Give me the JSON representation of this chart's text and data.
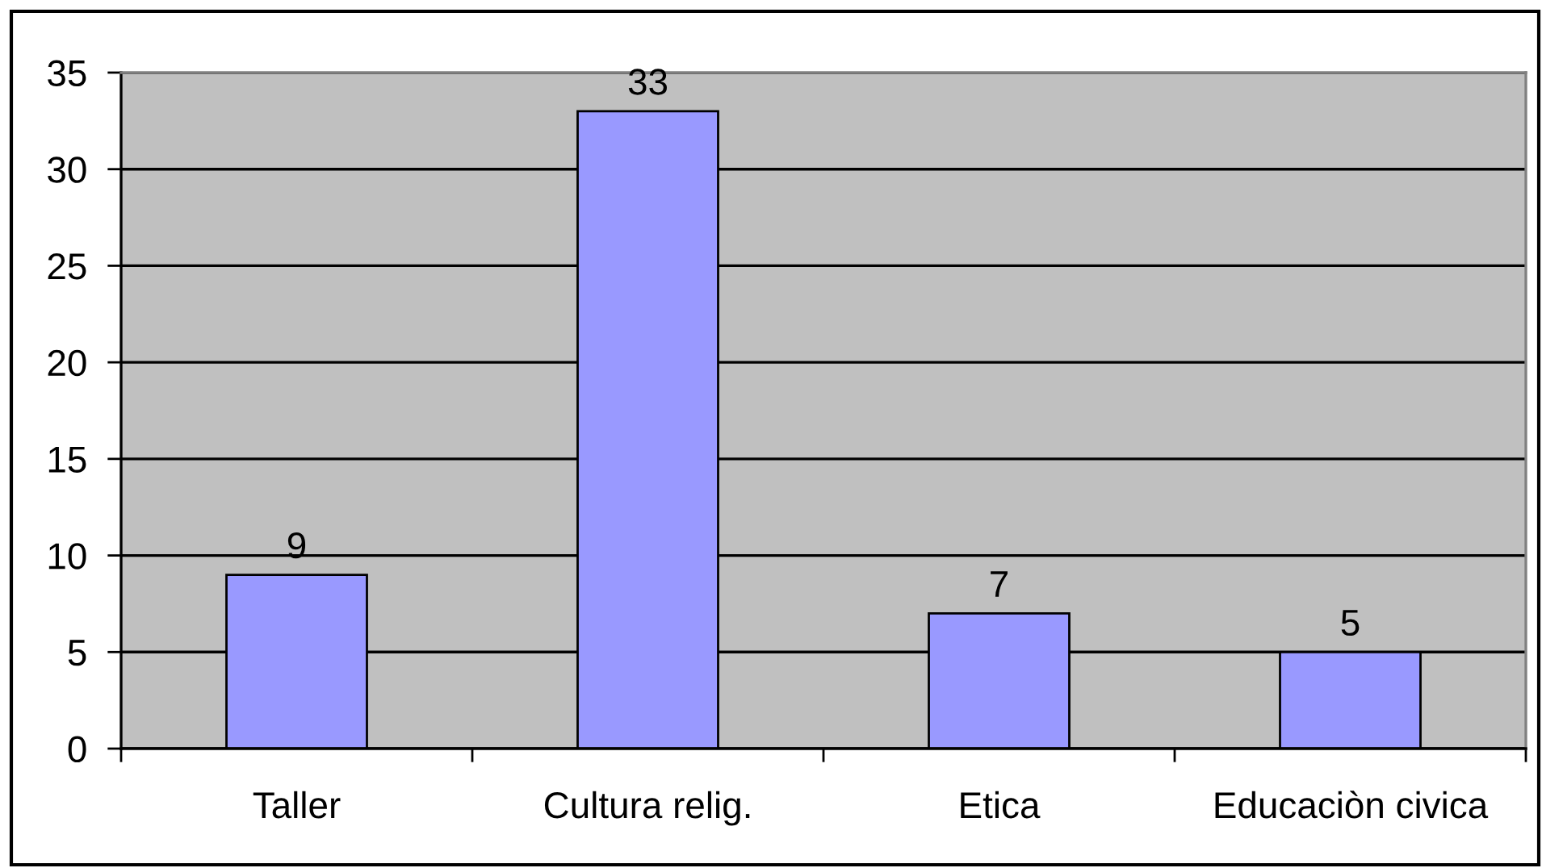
{
  "chart_data": {
    "type": "bar",
    "categories": [
      "Taller",
      "Cultura relig.",
      "Etica",
      "Educaciòn civica"
    ],
    "values": [
      9,
      33,
      7,
      5
    ],
    "color": "#9999ff",
    "data_labels": true,
    "ylim": [
      0,
      35
    ],
    "yticks": [
      0,
      5,
      10,
      15,
      20,
      25,
      30,
      35
    ],
    "grid": "y"
  }
}
